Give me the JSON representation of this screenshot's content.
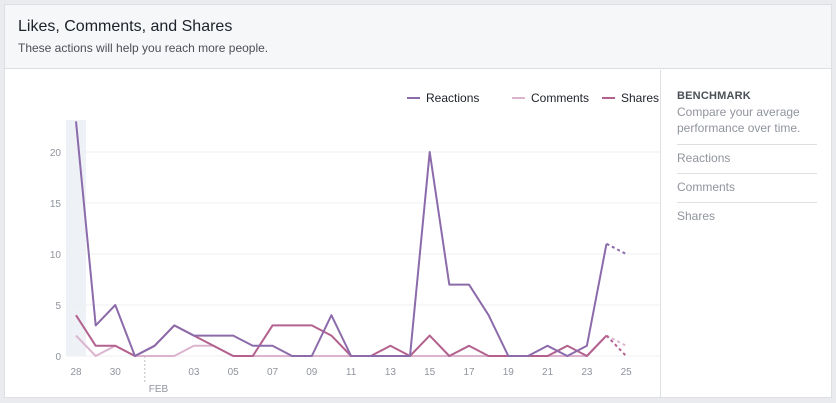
{
  "header": {
    "title": "Likes, Comments, and Shares",
    "subtitle": "These actions will help you reach more people."
  },
  "legend": [
    {
      "label": "Reactions",
      "color": "#8c6bab"
    },
    {
      "label": "Comments",
      "color": "#dcb4d0"
    },
    {
      "label": "Shares",
      "color": "#b3618e"
    }
  ],
  "benchmark": {
    "title": "BENCHMARK",
    "description": "Compare your average performance over time.",
    "items": [
      "Reactions",
      "Comments",
      "Shares"
    ]
  },
  "chart_data": {
    "type": "line",
    "x": [
      "28",
      "29",
      "30",
      "31",
      "01",
      "02",
      "03",
      "04",
      "05",
      "06",
      "07",
      "08",
      "09",
      "10",
      "11",
      "12",
      "13",
      "14",
      "15",
      "16",
      "17",
      "18",
      "19",
      "20",
      "21",
      "22",
      "23",
      "24",
      "25",
      "26"
    ],
    "x_tick_labels": [
      "28",
      "30",
      "03",
      "05",
      "07",
      "09",
      "11",
      "13",
      "15",
      "17",
      "19",
      "21",
      "23",
      "25"
    ],
    "month_marker": "FEB",
    "ylim": [
      0,
      23
    ],
    "y_ticks": [
      0,
      5,
      10,
      15,
      20
    ],
    "grid": true,
    "legend_position": "top-right",
    "series": [
      {
        "name": "Reactions",
        "color": "#8c6bab",
        "values": [
          23,
          3,
          5,
          0,
          1,
          3,
          2,
          2,
          2,
          1,
          1,
          0,
          0,
          4,
          0,
          0,
          0,
          0,
          20,
          7,
          7,
          4,
          0,
          0,
          1,
          0,
          1,
          11,
          10,
          null
        ]
      },
      {
        "name": "Comments",
        "color": "#dcb4d0",
        "values": [
          2,
          0,
          1,
          0,
          0,
          0,
          1,
          1,
          0,
          0,
          0,
          0,
          0,
          0,
          0,
          0,
          0,
          0,
          0,
          0,
          0,
          0,
          0,
          0,
          0,
          0,
          0,
          2,
          1,
          null
        ]
      },
      {
        "name": "Shares",
        "color": "#b3618e",
        "values": [
          4,
          1,
          1,
          0,
          1,
          3,
          2,
          1,
          0,
          0,
          3,
          3,
          3,
          2,
          0,
          0,
          1,
          0,
          2,
          0,
          1,
          0,
          0,
          0,
          0,
          1,
          0,
          2,
          0,
          null
        ]
      }
    ]
  }
}
